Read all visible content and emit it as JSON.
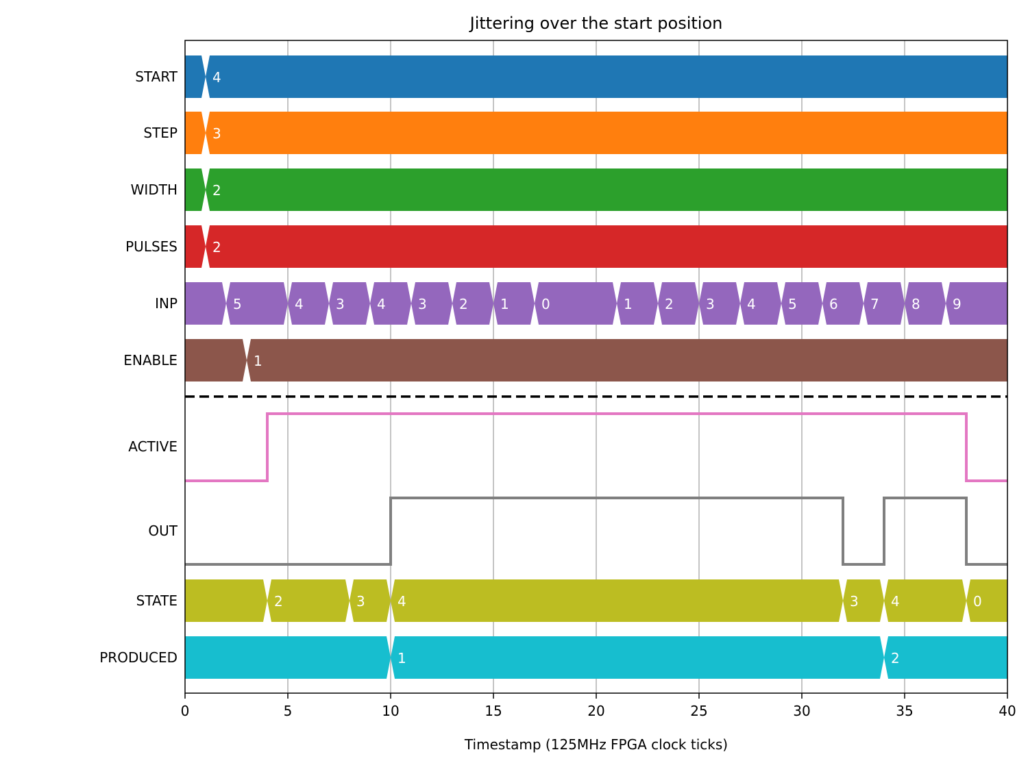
{
  "chart_data": {
    "type": "timing",
    "title": "Jittering over the start position",
    "xlabel": "Timestamp (125MHz FPGA clock ticks)",
    "xlim": [
      0,
      40
    ],
    "xticks": [
      0,
      5,
      10,
      15,
      20,
      25,
      30,
      35,
      40
    ],
    "grid": "vertical",
    "bus_signals": [
      {
        "name": "START",
        "color": "#1f77b4",
        "transitions": [
          1
        ],
        "values": [
          "",
          "4"
        ]
      },
      {
        "name": "STEP",
        "color": "#ff7f0e",
        "transitions": [
          1
        ],
        "values": [
          "",
          "3"
        ]
      },
      {
        "name": "WIDTH",
        "color": "#2ca02c",
        "transitions": [
          1
        ],
        "values": [
          "",
          "2"
        ]
      },
      {
        "name": "PULSES",
        "color": "#d62728",
        "transitions": [
          1
        ],
        "values": [
          "",
          "2"
        ]
      },
      {
        "name": "INP",
        "color": "#9467bd",
        "transitions": [
          2,
          5,
          7,
          9,
          11,
          13,
          15,
          17,
          21,
          23,
          25,
          27,
          29,
          31,
          33,
          35,
          37
        ],
        "values": [
          "",
          "5",
          "4",
          "3",
          "4",
          "3",
          "2",
          "1",
          "0",
          "1",
          "2",
          "3",
          "4",
          "5",
          "6",
          "7",
          "8",
          "9"
        ]
      },
      {
        "name": "ENABLE",
        "color": "#8c564b",
        "transitions": [
          3
        ],
        "values": [
          "",
          "1"
        ]
      }
    ],
    "bit_signals": [
      {
        "name": "ACTIVE",
        "color": "#e377c2",
        "times": [
          0,
          4,
          38,
          40
        ],
        "levels": [
          0,
          1,
          0,
          0
        ]
      },
      {
        "name": "OUT",
        "color": "#7f7f7f",
        "times": [
          0,
          10,
          32,
          34,
          38,
          40
        ],
        "levels": [
          0,
          1,
          0,
          1,
          0,
          0
        ]
      }
    ],
    "bus_signals_lower": [
      {
        "name": "STATE",
        "color": "#bcbd22",
        "transitions": [
          4,
          8,
          10,
          32,
          34,
          38
        ],
        "values": [
          "",
          "2",
          "3",
          "4",
          "3",
          "4",
          "0"
        ]
      },
      {
        "name": "PRODUCED",
        "color": "#17becf",
        "transitions": [
          10,
          34
        ],
        "values": [
          "",
          "1",
          "2"
        ]
      }
    ]
  }
}
